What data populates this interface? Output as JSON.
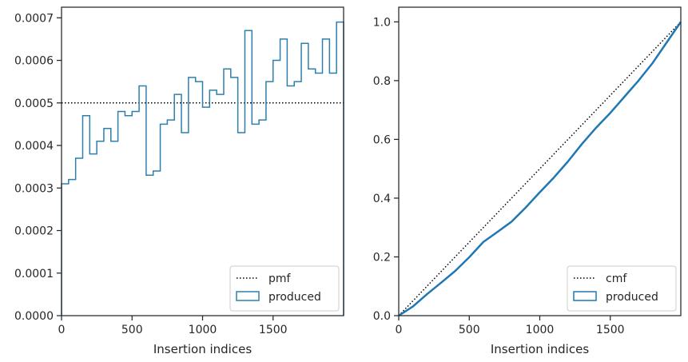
{
  "chart_data": [
    {
      "type": "histogram-step",
      "xlabel": "Insertion indices",
      "ylabel": "",
      "title": "",
      "xlim": [
        0,
        2000
      ],
      "ylim": [
        0,
        0.000725
      ],
      "xticks": [
        0,
        500,
        1000,
        1500
      ],
      "yticks": [
        0,
        0.0001,
        0.0002,
        0.0003,
        0.0004,
        0.0005,
        0.0006,
        0.0007
      ],
      "ytick_labels": [
        "0.0000",
        "0.0001",
        "0.0002",
        "0.0003",
        "0.0004",
        "0.0005",
        "0.0006",
        "0.0007"
      ],
      "reference": {
        "name": "pmf",
        "value": 0.0005,
        "style": "dotted",
        "color": "#000000"
      },
      "bin_width": 50,
      "series": [
        {
          "name": "produced",
          "color": "#2f7fab",
          "values": [
            0.00031,
            0.00032,
            0.00037,
            0.00047,
            0.00038,
            0.00041,
            0.00044,
            0.00041,
            0.00048,
            0.00047,
            0.00048,
            0.00054,
            0.00033,
            0.00034,
            0.00045,
            0.00046,
            0.00052,
            0.00043,
            0.00056,
            0.00055,
            0.00049,
            0.00053,
            0.00052,
            0.00058,
            0.00056,
            0.00043,
            0.00067,
            0.00045,
            0.00046,
            0.00055,
            0.0006,
            0.00065,
            0.00054,
            0.00055,
            0.00064,
            0.00058,
            0.00057,
            0.00065,
            0.00057,
            0.00069
          ]
        }
      ],
      "legend": {
        "position": "bottom-right",
        "entries": [
          "pmf",
          "produced"
        ]
      }
    },
    {
      "type": "line",
      "xlabel": "Insertion indices",
      "ylabel": "",
      "title": "",
      "xlim": [
        0,
        2000
      ],
      "ylim": [
        0,
        1.05
      ],
      "xticks": [
        0,
        500,
        1000,
        1500
      ],
      "yticks": [
        0.0,
        0.2,
        0.4,
        0.6,
        0.8,
        1.0
      ],
      "ytick_labels": [
        "0.0",
        "0.2",
        "0.4",
        "0.6",
        "0.8",
        "1.0"
      ],
      "reference": {
        "name": "cmf",
        "from": [
          0,
          0
        ],
        "to": [
          2000,
          1.0
        ],
        "style": "dotted",
        "color": "#000000"
      },
      "series": [
        {
          "name": "produced",
          "color": "#1f77b4",
          "x": [
            0,
            100,
            200,
            300,
            400,
            500,
            600,
            700,
            800,
            900,
            1000,
            1100,
            1200,
            1300,
            1400,
            1500,
            1600,
            1700,
            1800,
            1900,
            2000
          ],
          "y": [
            0.0,
            0.031,
            0.073,
            0.112,
            0.152,
            0.199,
            0.251,
            0.285,
            0.32,
            0.368,
            0.42,
            0.47,
            0.525,
            0.585,
            0.64,
            0.69,
            0.745,
            0.8,
            0.86,
            0.93,
            1.0
          ]
        }
      ],
      "legend": {
        "position": "bottom-right",
        "entries": [
          "cmf",
          "produced"
        ]
      }
    }
  ]
}
